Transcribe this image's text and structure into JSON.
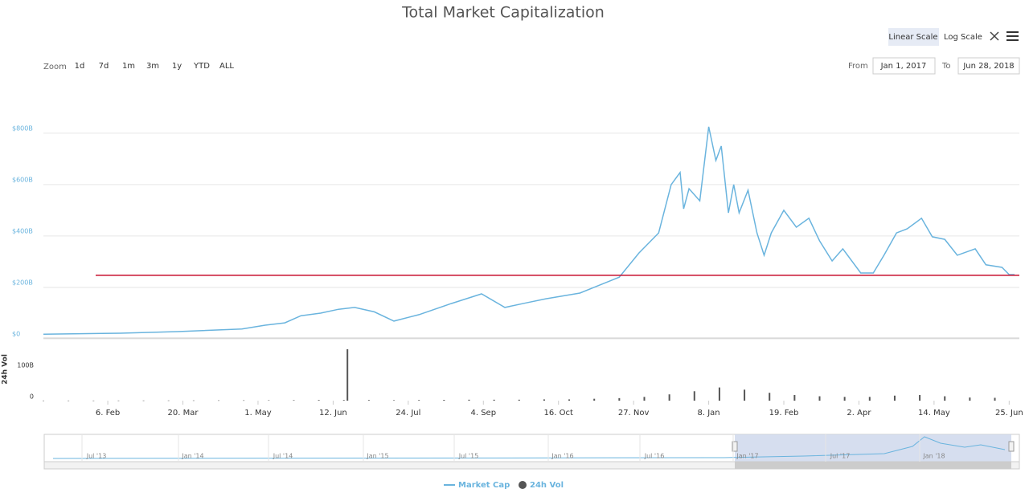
{
  "header": {
    "title": "Total Market Capitalization",
    "scale_buttons": [
      "Linear Scale",
      "Log Scale"
    ],
    "zoom_label": "Zoom",
    "zoom_buttons": [
      "1d",
      "7d",
      "1m",
      "3m",
      "1y",
      "YTD",
      "ALL"
    ],
    "from_label": "From",
    "from_value": "Jan 1, 2017",
    "to_label": "To",
    "to_value": "Jun 28, 2018"
  },
  "chart_data": [
    {
      "type": "line",
      "x": [
        0,
        43,
        75,
        111,
        124,
        135,
        144,
        155,
        165,
        174,
        185,
        196,
        210,
        228,
        245,
        258,
        270,
        281,
        300,
        311,
        322,
        333,
        344,
        351,
        356,
        358,
        361,
        367,
        372,
        376,
        379,
        383,
        386,
        389,
        394,
        399,
        403,
        407,
        414,
        421,
        428,
        434,
        441,
        447,
        457,
        464,
        470,
        477,
        483,
        491,
        497,
        504,
        511,
        521,
        527,
        536,
        540,
        543
      ],
      "series": [
        {
          "name": "Market Cap",
          "color": "#6ab4de",
          "values": [
            18,
            22,
            28,
            38,
            53,
            62,
            90,
            100,
            115,
            122,
            105,
            69,
            94,
            137,
            175,
            122,
            140,
            156,
            178,
            209,
            240,
            334,
            412,
            600,
            647,
            506,
            584,
            537,
            825,
            694,
            750,
            490,
            600,
            490,
            578,
            412,
            325,
            412,
            500,
            434,
            469,
            381,
            303,
            350,
            256,
            256,
            325,
            412,
            428,
            469,
            397,
            387,
            325,
            350,
            288,
            278,
            250,
            250
          ]
        }
      ],
      "xlim": [
        0,
        543
      ],
      "xticks": [
        {
          "value": 36,
          "label": "6. Feb"
        },
        {
          "value": 78,
          "label": "20. Mar"
        },
        {
          "value": 120,
          "label": "1. May"
        },
        {
          "value": 162,
          "label": "12. Jun"
        },
        {
          "value": 204,
          "label": "24. Jul"
        },
        {
          "value": 246,
          "label": "4. Sep"
        },
        {
          "value": 288,
          "label": "16. Oct"
        },
        {
          "value": 330,
          "label": "27. Nov"
        },
        {
          "value": 372,
          "label": "8. Jan"
        },
        {
          "value": 414,
          "label": "19. Feb"
        },
        {
          "value": 456,
          "label": "2. Apr"
        },
        {
          "value": 498,
          "label": "14. May"
        },
        {
          "value": 540,
          "label": "25. Jun"
        }
      ],
      "ylim": [
        0,
        912
      ],
      "yticks": [
        {
          "value": 0,
          "label": "$0"
        },
        {
          "value": 200,
          "label": "$200B"
        },
        {
          "value": 400,
          "label": "$400B"
        },
        {
          "value": 600,
          "label": "$600B"
        },
        {
          "value": 800,
          "label": "$800B"
        }
      ],
      "grid": true,
      "reference_line": {
        "value": 247,
        "color": "#c8102e"
      }
    },
    {
      "type": "bar",
      "y_label": "24h Vol",
      "x": [
        0,
        14,
        28,
        42,
        56,
        70,
        84,
        98,
        112,
        126,
        140,
        154,
        168,
        170,
        182,
        196,
        210,
        224,
        238,
        252,
        266,
        280,
        294,
        308,
        322,
        336,
        350,
        364,
        378,
        392,
        406,
        420,
        434,
        448,
        462,
        476,
        490,
        504,
        518,
        532
      ],
      "series": [
        {
          "name": "24h Vol",
          "color": "#555555",
          "values": [
            0.3,
            0.3,
            0.3,
            0.4,
            0.5,
            0.6,
            0.7,
            0.9,
            1,
            1.2,
            1.5,
            2,
            2,
            164,
            2,
            1.5,
            2,
            2.5,
            3,
            3,
            3,
            4,
            4,
            6,
            8,
            12,
            20,
            30,
            42,
            35,
            25,
            18,
            14,
            12,
            12,
            16,
            18,
            14,
            10,
            9
          ]
        }
      ],
      "xlim": [
        0,
        543
      ],
      "ylim": [
        0,
        197
      ],
      "yticks": [
        0,
        {
          "value": 100,
          "label": "100B"
        }
      ]
    }
  ],
  "navigator": {
    "labels": [
      "Jul '13",
      "Jan '14",
      "Jul '14",
      "Jan '15",
      "Jul '15",
      "Jan '16",
      "Jul '16",
      "Jan '17",
      "Jul '17",
      "Jan '18"
    ]
  }
}
